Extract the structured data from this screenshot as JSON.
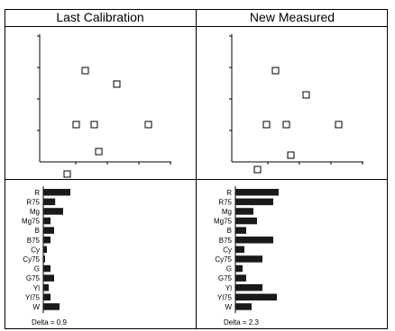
{
  "panels": [
    {
      "title": "Last Calibration",
      "scatter": [
        [
          50,
          40
        ],
        [
          85,
          55
        ],
        [
          40,
          100
        ],
        [
          60,
          100
        ],
        [
          120,
          100
        ],
        [
          65,
          130
        ],
        [
          30,
          155
        ]
      ],
      "bars": [
        {
          "label": "R",
          "value": 0.75
        },
        {
          "label": "R75",
          "value": 0.33
        },
        {
          "label": "Mg",
          "value": 0.55
        },
        {
          "label": "Mg75",
          "value": 0.2
        },
        {
          "label": "B",
          "value": 0.3
        },
        {
          "label": "B75",
          "value": 0.2
        },
        {
          "label": "Cy",
          "value": 0.1
        },
        {
          "label": "Cy75",
          "value": 0.05
        },
        {
          "label": "G",
          "value": 0.2
        },
        {
          "label": "G75",
          "value": 0.3
        },
        {
          "label": "Yl",
          "value": 0.15
        },
        {
          "label": "Yl75",
          "value": 0.2
        },
        {
          "label": "W",
          "value": 0.45
        }
      ],
      "delta": "Delta = 0.9"
    },
    {
      "title": "New Measured",
      "scatter": [
        [
          48,
          40
        ],
        [
          82,
          67
        ],
        [
          38,
          100
        ],
        [
          60,
          100
        ],
        [
          118,
          100
        ],
        [
          65,
          134
        ],
        [
          28,
          150
        ]
      ],
      "bars": [
        {
          "label": "R",
          "value": 1.2
        },
        {
          "label": "R75",
          "value": 1.05
        },
        {
          "label": "Mg",
          "value": 0.5
        },
        {
          "label": "Mg75",
          "value": 0.6
        },
        {
          "label": "B",
          "value": 0.3
        },
        {
          "label": "B75",
          "value": 1.05
        },
        {
          "label": "Cy",
          "value": 0.25
        },
        {
          "label": "Cy75",
          "value": 0.75
        },
        {
          "label": "G",
          "value": 0.2
        },
        {
          "label": "G75",
          "value": 0.3
        },
        {
          "label": "Yl",
          "value": 0.75
        },
        {
          "label": "Yl75",
          "value": 1.15
        },
        {
          "label": "W",
          "value": 0.45
        }
      ],
      "delta": "Delta = 2.3"
    }
  ]
}
